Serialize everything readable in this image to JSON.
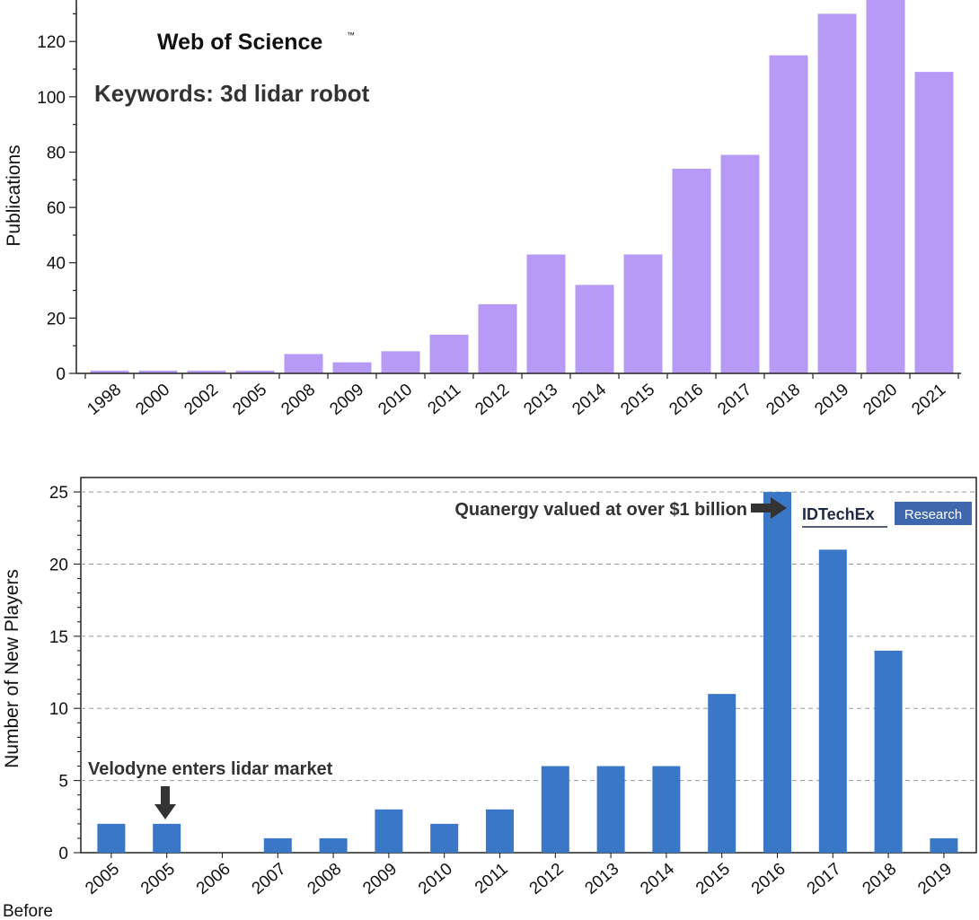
{
  "chart_data": [
    {
      "type": "bar",
      "title": "Web of Science",
      "trademark": "™",
      "subtitle": "Keywords: 3d lidar robot",
      "xlabel": "",
      "ylabel": "Publications",
      "ylim": [
        0,
        135
      ],
      "yticks": [
        0,
        20,
        40,
        60,
        80,
        100,
        120
      ],
      "grid": false,
      "color": "#b799f6",
      "categories": [
        "1998",
        "2000",
        "2002",
        "2005",
        "2008",
        "2009",
        "2010",
        "2011",
        "2012",
        "2013",
        "2014",
        "2015",
        "2016",
        "2017",
        "2018",
        "2019",
        "2020",
        "2021"
      ],
      "values": [
        1,
        1,
        1,
        1,
        7,
        4,
        8,
        14,
        25,
        43,
        32,
        43,
        74,
        79,
        115,
        130,
        136,
        109
      ]
    },
    {
      "type": "bar",
      "title": "",
      "xlabel": "",
      "ylabel": "Number of New Players",
      "ylim": [
        0,
        26
      ],
      "yticks": [
        0,
        5,
        10,
        15,
        20,
        25
      ],
      "grid": true,
      "color": "#3a78c7",
      "categories": [
        "Before 2005",
        "2005",
        "2006",
        "2007",
        "2008",
        "2009",
        "2010",
        "2011",
        "2012",
        "2013",
        "2014",
        "2015",
        "2016",
        "2017",
        "2018",
        "2019"
      ],
      "values": [
        2,
        2,
        0,
        1,
        1,
        3,
        2,
        3,
        6,
        6,
        6,
        11,
        25,
        21,
        14,
        1
      ],
      "annotations": [
        {
          "text": "Velodyne enters lidar market",
          "category": "2005"
        },
        {
          "text": "Quanergy valued at over $1 billion",
          "category": "2016"
        }
      ],
      "logo": {
        "name": "IDTechEx",
        "badge": "Research"
      }
    }
  ]
}
